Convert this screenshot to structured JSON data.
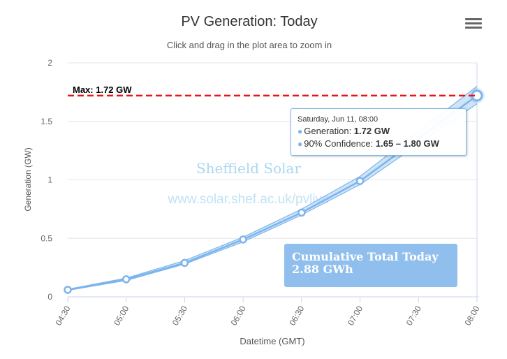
{
  "title": "PV Generation: Today",
  "subtitle": "Click and drag in the plot area to zoom in",
  "watermark": {
    "line1": "Sheffield Solar",
    "line2": "www.solar.shef.ac.uk/pvlive"
  },
  "max_label": "Max: 1.72 GW",
  "cumulative": {
    "label": "Cumulative Total Today",
    "value": "2.88 GWh"
  },
  "tooltip": {
    "date": "Saturday, Jun 11, 08:00",
    "gen_label": "Generation: ",
    "gen_value": "1.72 GW",
    "conf_label": "90% Confidence: ",
    "conf_value": "1.65 – 1.80 GW"
  },
  "menu_icon": "hamburger-menu-icon",
  "colors": {
    "series": "#7cb5ec",
    "band": "#aacdf0",
    "max_line": "#e8141c",
    "cumulative_box": "#90bfee",
    "watermark": "#a8d8f0"
  },
  "chart_data": {
    "type": "line",
    "title": "PV Generation: Today",
    "subtitle": "Click and drag in the plot area to zoom in",
    "xlabel": "Datetime (GMT)",
    "ylabel": "Generation (GW)",
    "ylim": [
      0,
      2
    ],
    "yticks": [
      0,
      0.5,
      1,
      1.5,
      2
    ],
    "ytick_labels": [
      "0",
      "0.5",
      "1",
      "1.5",
      "2"
    ],
    "xticks": [
      "04:30",
      "05:00",
      "05:30",
      "06:00",
      "06:30",
      "07:00",
      "07:30",
      "08:00"
    ],
    "grid": true,
    "series": [
      {
        "name": "Generation",
        "x": [
          "04:30",
          "05:00",
          "05:30",
          "06:00",
          "06:30",
          "07:00",
          "08:00"
        ],
        "values": [
          0.06,
          0.15,
          0.29,
          0.49,
          0.72,
          0.99,
          1.72
        ]
      },
      {
        "name": "90% Confidence",
        "x": [
          "04:30",
          "05:00",
          "05:30",
          "06:00",
          "06:30",
          "07:00",
          "08:00"
        ],
        "low": [
          0.055,
          0.14,
          0.28,
          0.47,
          0.7,
          0.96,
          1.65
        ],
        "high": [
          0.065,
          0.16,
          0.31,
          0.51,
          0.75,
          1.03,
          1.8
        ]
      }
    ],
    "max_value": 1.72
  }
}
